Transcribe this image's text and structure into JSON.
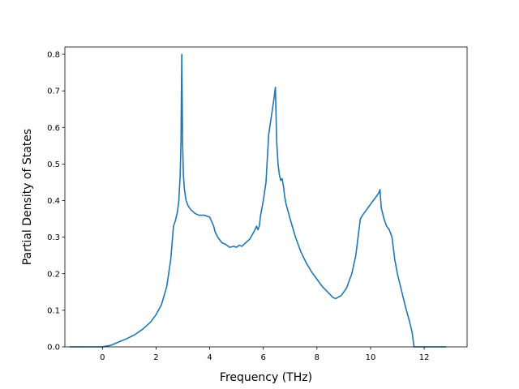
{
  "chart_data": {
    "type": "line",
    "title": "",
    "xlabel": "Frequency (THz)",
    "ylabel": "Partial Density of States",
    "xlim": [
      -1.4,
      13.6
    ],
    "ylim": [
      0.0,
      0.82
    ],
    "xticks": [
      0,
      2,
      4,
      6,
      8,
      10,
      12
    ],
    "yticks": [
      0.0,
      0.1,
      0.2,
      0.3,
      0.4,
      0.5,
      0.6,
      0.7,
      0.8
    ],
    "ytick_labels": [
      "0.0",
      "0.1",
      "0.2",
      "0.3",
      "0.4",
      "0.5",
      "0.6",
      "0.7",
      "0.8"
    ],
    "grid": false,
    "line_color": "#1f77b4",
    "series": [
      {
        "x": [
          -1.2,
          -0.5,
          0.0,
          0.3,
          0.6,
          0.9,
          1.2,
          1.5,
          1.8,
          2.0,
          2.2,
          2.4,
          2.55,
          2.65,
          2.72,
          2.8,
          2.85,
          2.9,
          2.93,
          2.96,
          2.99,
          3.02,
          3.06,
          3.12,
          3.2,
          3.3,
          3.45,
          3.6,
          3.8,
          4.0,
          4.15,
          4.2,
          4.3,
          4.45,
          4.6,
          4.75,
          4.9,
          5.0,
          5.1,
          5.2,
          5.35,
          5.5,
          5.65,
          5.75,
          5.8,
          5.85,
          5.9,
          6.0,
          6.1,
          6.2,
          6.3,
          6.4,
          6.45,
          6.5,
          6.55,
          6.6,
          6.65,
          6.7,
          6.75,
          6.8,
          6.85,
          7.0,
          7.2,
          7.4,
          7.6,
          7.8,
          8.0,
          8.2,
          8.4,
          8.6,
          8.7,
          8.9,
          9.1,
          9.3,
          9.45,
          9.55,
          9.62,
          9.7,
          9.9,
          10.1,
          10.3,
          10.35,
          10.4,
          10.5,
          10.6,
          10.7,
          10.8,
          10.85,
          10.9,
          11.0,
          11.1,
          11.2,
          11.3,
          11.45,
          11.55,
          11.62,
          11.7,
          12.8
        ],
        "y": [
          0.0,
          0.0,
          0.0,
          0.004,
          0.013,
          0.022,
          0.033,
          0.048,
          0.068,
          0.088,
          0.115,
          0.165,
          0.24,
          0.33,
          0.345,
          0.37,
          0.4,
          0.47,
          0.56,
          0.8,
          0.56,
          0.47,
          0.43,
          0.4,
          0.385,
          0.375,
          0.365,
          0.36,
          0.36,
          0.355,
          0.33,
          0.315,
          0.3,
          0.285,
          0.28,
          0.272,
          0.275,
          0.272,
          0.278,
          0.275,
          0.285,
          0.295,
          0.315,
          0.33,
          0.32,
          0.33,
          0.36,
          0.4,
          0.45,
          0.58,
          0.63,
          0.68,
          0.71,
          0.56,
          0.5,
          0.47,
          0.455,
          0.46,
          0.44,
          0.41,
          0.39,
          0.35,
          0.3,
          0.26,
          0.23,
          0.205,
          0.185,
          0.165,
          0.15,
          0.135,
          0.132,
          0.14,
          0.16,
          0.2,
          0.25,
          0.31,
          0.35,
          0.36,
          0.38,
          0.4,
          0.42,
          0.43,
          0.38,
          0.35,
          0.33,
          0.32,
          0.3,
          0.27,
          0.24,
          0.2,
          0.17,
          0.14,
          0.11,
          0.07,
          0.04,
          0.0,
          0.0,
          0.0
        ]
      }
    ]
  }
}
